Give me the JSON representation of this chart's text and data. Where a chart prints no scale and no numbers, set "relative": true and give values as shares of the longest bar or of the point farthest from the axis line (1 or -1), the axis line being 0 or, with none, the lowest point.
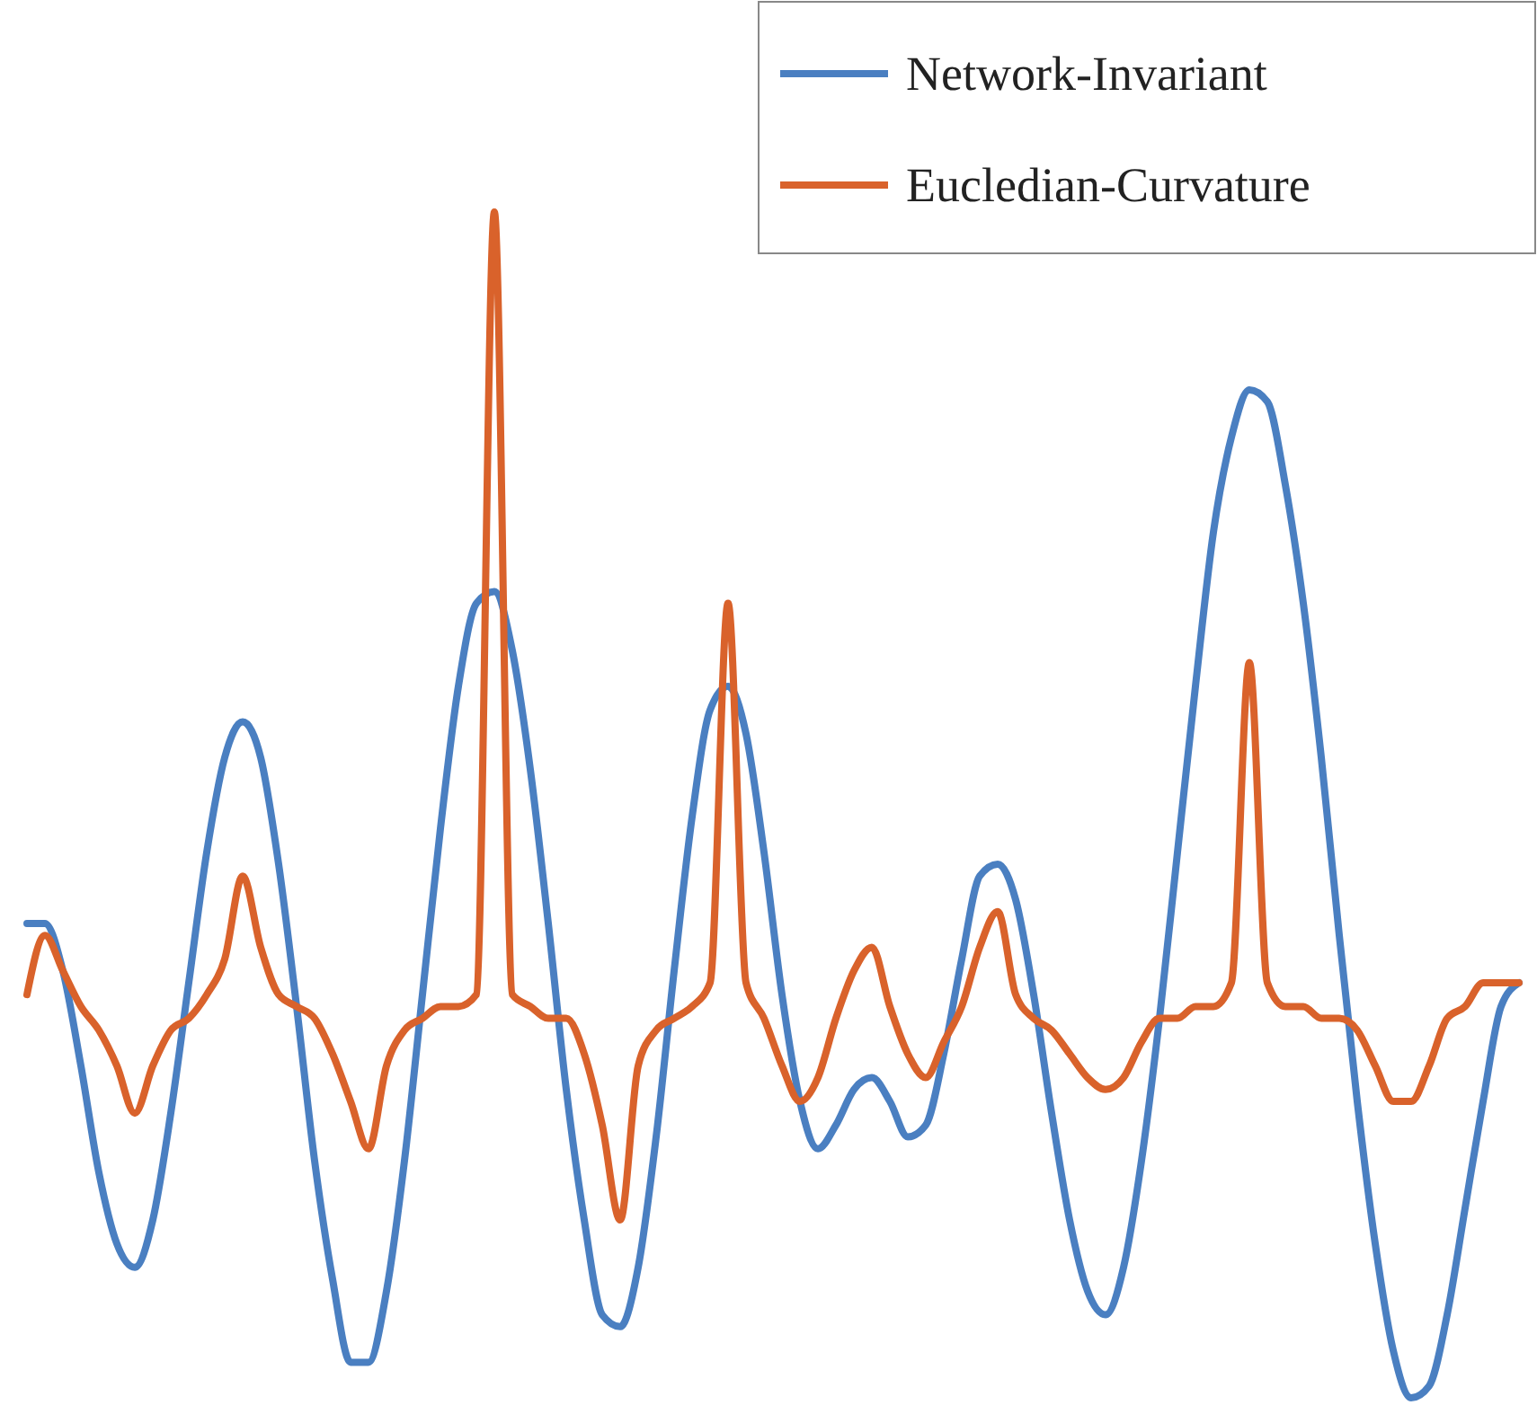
{
  "chart_data": {
    "type": "line",
    "relative": true,
    "legend": "top right",
    "categories": [
      null,
      null,
      null,
      null,
      null,
      null,
      null,
      null,
      null,
      null,
      null,
      null,
      null,
      null,
      null,
      null,
      null,
      null,
      null,
      null,
      null,
      null,
      null,
      null,
      null,
      null,
      null,
      null,
      null,
      null,
      null,
      null,
      null,
      null,
      null,
      null,
      null,
      null,
      null,
      null,
      null,
      null,
      null,
      null,
      null,
      null,
      null,
      null,
      null,
      null,
      null,
      null,
      null,
      null,
      null,
      null,
      null,
      null,
      null,
      null,
      null,
      null,
      null,
      null,
      null,
      null,
      null,
      null,
      null,
      null,
      null,
      null,
      null,
      null,
      null,
      null,
      null,
      null,
      null,
      null,
      null,
      null,
      null,
      null
    ],
    "series": [
      {
        "name": "Network-Invariant",
        "color": "#4a7fc1",
        "values": [
          0.4,
          0.4,
          0.36,
          0.28,
          0.19,
          0.13,
          0.11,
          0.15,
          0.24,
          0.35,
          0.46,
          0.54,
          0.57,
          0.54,
          0.45,
          0.33,
          0.2,
          0.1,
          0.03,
          0.03,
          0.09,
          0.2,
          0.34,
          0.48,
          0.6,
          0.67,
          0.68,
          0.63,
          0.53,
          0.4,
          0.26,
          0.15,
          0.07,
          0.06,
          0.11,
          0.22,
          0.36,
          0.49,
          0.58,
          0.6,
          0.56,
          0.46,
          0.34,
          0.25,
          0.21,
          0.23,
          0.26,
          0.27,
          0.25,
          0.22,
          0.23,
          0.29,
          0.37,
          0.44,
          0.45,
          0.42,
          0.34,
          0.24,
          0.15,
          0.09,
          0.07,
          0.11,
          0.2,
          0.32,
          0.46,
          0.6,
          0.73,
          0.81,
          0.85,
          0.84,
          0.77,
          0.67,
          0.54,
          0.39,
          0.25,
          0.13,
          0.04,
          0,
          0.01,
          0.07,
          0.16,
          0.25,
          0.33,
          0.35
        ]
      },
      {
        "name": "Eucledian-Curvature",
        "color": "#d9622b",
        "values": [
          0.34,
          0.39,
          0.36,
          0.33,
          0.31,
          0.28,
          0.24,
          0.28,
          0.31,
          0.32,
          0.34,
          0.37,
          0.44,
          0.38,
          0.34,
          0.33,
          0.32,
          0.29,
          0.25,
          0.21,
          0.28,
          0.31,
          0.32,
          0.33,
          0.33,
          0.34,
          1.0,
          0.34,
          0.33,
          0.32,
          0.32,
          0.29,
          0.23,
          0.15,
          0.28,
          0.31,
          0.32,
          0.33,
          0.35,
          0.67,
          0.35,
          0.32,
          0.28,
          0.25,
          0.27,
          0.32,
          0.36,
          0.38,
          0.33,
          0.29,
          0.27,
          0.3,
          0.33,
          0.38,
          0.41,
          0.34,
          0.32,
          0.31,
          0.29,
          0.27,
          0.26,
          0.27,
          0.3,
          0.32,
          0.32,
          0.33,
          0.33,
          0.35,
          0.62,
          0.35,
          0.33,
          0.33,
          0.32,
          0.32,
          0.31,
          0.28,
          0.25,
          0.25,
          0.28,
          0.32,
          0.33,
          0.35,
          0.35,
          0.35
        ]
      }
    ]
  }
}
